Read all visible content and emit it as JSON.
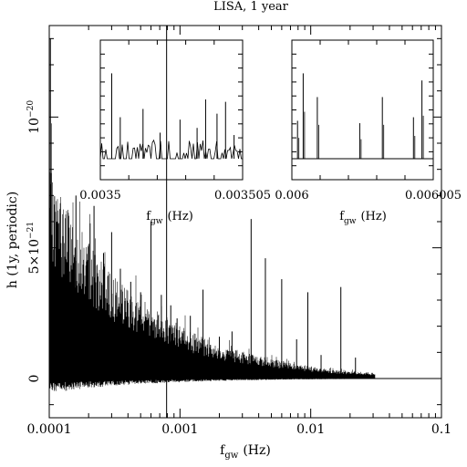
{
  "chart_data": [
    {
      "type": "line",
      "title": "LISA, 1 year",
      "xlabel_main": "f",
      "xlabel_sub": "gw",
      "xlabel_unit": "(Hz)",
      "ylabel": "h (1y, periodic)",
      "xscale": "log",
      "xlim": [
        0.0001,
        0.1
      ],
      "ylim": [
        -1.5e-21,
        1.35e-20
      ],
      "xticks": [
        {
          "value": 0.0001,
          "label": "0.0001"
        },
        {
          "value": 0.001,
          "label": "0.001"
        },
        {
          "value": 0.01,
          "label": "0.01"
        },
        {
          "value": 0.1,
          "label": "0.1"
        }
      ],
      "yticks": [
        {
          "value": 0,
          "label": "0"
        },
        {
          "value": 5e-21,
          "label_base": "5×10",
          "label_exp": "−21"
        },
        {
          "value": 1e-20,
          "label_base": "10",
          "label_exp": "−20"
        }
      ],
      "vertical_line_x": 0.00079,
      "zero_line": true,
      "envelope_x": [
        0.0001,
        0.00015,
        0.0002,
        0.0003,
        0.0005,
        0.0008,
        0.0012,
        0.002,
        0.003,
        0.005,
        0.008,
        0.012,
        0.02,
        0.03
      ],
      "envelope_y": [
        8e-21,
        6.3e-21,
        5.2e-21,
        4e-21,
        3.1e-21,
        2.4e-21,
        1.8e-21,
        1.3e-21,
        1.05e-21,
        7.5e-22,
        5.5e-22,
        4e-22,
        2.8e-22,
        2.2e-22
      ],
      "peaks": [
        {
          "x": 0.000102,
          "y": 1.3e-20
        },
        {
          "x": 0.00016,
          "y": 7e-21
        },
        {
          "x": 0.00022,
          "y": 6.6e-21
        },
        {
          "x": 0.00026,
          "y": 4.8e-21
        },
        {
          "x": 0.0003,
          "y": 5.6e-21
        },
        {
          "x": 0.00035,
          "y": 4.2e-21
        },
        {
          "x": 0.00042,
          "y": 3.7e-21
        },
        {
          "x": 0.0005,
          "y": 3.3e-21
        },
        {
          "x": 0.0006,
          "y": 6e-21
        },
        {
          "x": 0.00072,
          "y": 3.2e-21
        },
        {
          "x": 0.00085,
          "y": 2.8e-21
        },
        {
          "x": 0.00095,
          "y": 2.3e-21
        },
        {
          "x": 0.0012,
          "y": 2.4e-21
        },
        {
          "x": 0.0015,
          "y": 3.4e-21
        },
        {
          "x": 0.002,
          "y": 1.6e-21
        },
        {
          "x": 0.0025,
          "y": 1.8e-21
        },
        {
          "x": 0.0035,
          "y": 6.1e-21
        },
        {
          "x": 0.0045,
          "y": 4.6e-21
        },
        {
          "x": 0.006,
          "y": 3.8e-21
        },
        {
          "x": 0.0078,
          "y": 1.5e-21
        },
        {
          "x": 0.0095,
          "y": 3.3e-21
        },
        {
          "x": 0.012,
          "y": 9e-22
        },
        {
          "x": 0.017,
          "y": 3.5e-21
        },
        {
          "x": 0.022,
          "y": 8e-22
        }
      ],
      "data_end_x": 0.031
    },
    {
      "type": "line",
      "inset": "left",
      "xlabel_main": "f",
      "xlabel_sub": "gw",
      "xlabel_unit": "(Hz)",
      "xlim": [
        0.0035,
        0.003505
      ],
      "xticks": [
        {
          "value": 0.0035,
          "label": "0.0035"
        },
        {
          "value": 0.003505,
          "label": "0.003505"
        }
      ],
      "vertical_line_x": 0.003502,
      "peaks": [
        {
          "x": 0.0035004,
          "y": 0.72
        },
        {
          "x": 0.0035007,
          "y": 0.35
        },
        {
          "x": 0.0035015,
          "y": 0.42
        },
        {
          "x": 0.0035021,
          "y": 0.22
        },
        {
          "x": 0.0035028,
          "y": 0.33
        },
        {
          "x": 0.0035034,
          "y": 0.26
        },
        {
          "x": 0.0035037,
          "y": 0.5
        },
        {
          "x": 0.0035041,
          "y": 0.38
        },
        {
          "x": 0.0035044,
          "y": 0.48
        },
        {
          "x": 0.0035047,
          "y": 0.2
        }
      ]
    },
    {
      "type": "line",
      "inset": "right",
      "xlabel_main": "f",
      "xlabel_sub": "gw",
      "xlabel_unit": "(Hz)",
      "xlim": [
        0.006,
        0.006005
      ],
      "xticks": [
        {
          "value": 0.006,
          "label": "0.006"
        },
        {
          "value": 0.006005,
          "label": "0.006005"
        }
      ],
      "peaks": [
        {
          "x": 0.0060002,
          "y": 0.32
        },
        {
          "x": 0.0060004,
          "y": 0.72
        },
        {
          "x": 0.0060009,
          "y": 0.52
        },
        {
          "x": 0.0060024,
          "y": 0.3
        },
        {
          "x": 0.0060032,
          "y": 0.52
        },
        {
          "x": 0.0060043,
          "y": 0.35
        },
        {
          "x": 0.0060046,
          "y": 0.66
        }
      ]
    }
  ]
}
